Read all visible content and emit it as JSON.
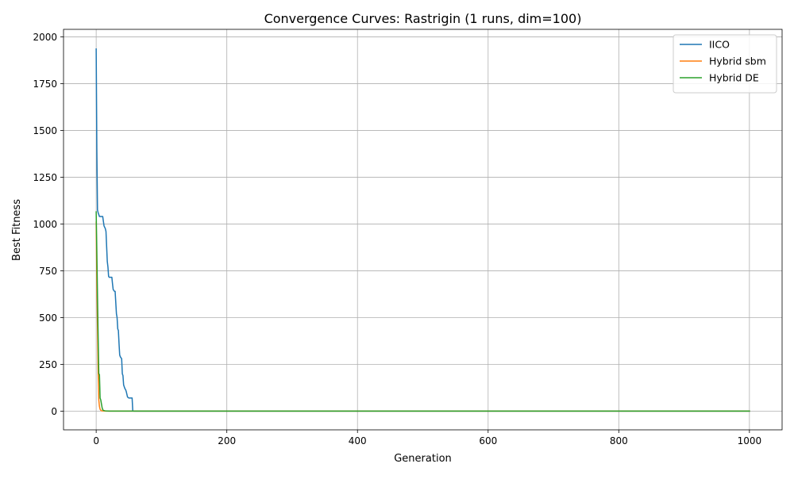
{
  "chart_data": {
    "type": "line",
    "title": "Convergence Curves: Rastrigin (1 runs, dim=100)",
    "xlabel": "Generation",
    "ylabel": "Best Fitness",
    "xlim": [
      -50,
      1050
    ],
    "ylim": [
      -100,
      2040
    ],
    "xticks": [
      0,
      200,
      400,
      600,
      800,
      1000
    ],
    "yticks": [
      0,
      250,
      500,
      750,
      1000,
      1250,
      1500,
      1750,
      2000
    ],
    "grid": true,
    "legend_position": "top-right",
    "series": [
      {
        "name": "IICO",
        "color": "#1f77b4",
        "x": [
          0,
          1,
          2,
          3,
          5,
          10,
          12,
          14,
          15,
          17,
          18,
          19,
          20,
          24,
          25,
          26,
          28,
          29,
          30,
          31,
          32,
          33,
          34,
          35,
          36,
          37,
          38,
          39,
          40,
          41,
          42,
          43,
          44,
          45,
          46,
          48,
          50,
          51,
          52,
          55,
          56,
          57,
          58,
          60,
          100,
          200,
          400,
          600,
          800,
          1000
        ],
        "y": [
          1935,
          1400,
          1075,
          1060,
          1040,
          1040,
          990,
          975,
          960,
          800,
          770,
          720,
          715,
          715,
          680,
          650,
          640,
          640,
          580,
          520,
          500,
          440,
          430,
          360,
          300,
          290,
          285,
          280,
          200,
          190,
          140,
          130,
          120,
          115,
          105,
          75,
          70,
          70,
          70,
          70,
          2,
          1,
          0,
          0,
          0,
          0,
          0,
          0,
          0,
          0
        ]
      },
      {
        "name": "Hybrid sbm",
        "color": "#ff7f0e",
        "x": [
          0,
          1,
          2,
          3,
          4,
          5,
          6,
          7,
          8,
          10,
          15,
          20,
          100,
          200,
          400,
          600,
          800,
          1000
        ],
        "y": [
          1010,
          700,
          450,
          200,
          60,
          25,
          10,
          5,
          2,
          1,
          0,
          0,
          0,
          0,
          0,
          0,
          0,
          0
        ]
      },
      {
        "name": "Hybrid DE",
        "color": "#2ca02c",
        "x": [
          0,
          1,
          2,
          3,
          4,
          5,
          6,
          7,
          8,
          9,
          10,
          11,
          13,
          15,
          20,
          100,
          200,
          400,
          600,
          800,
          1000
        ],
        "y": [
          1065,
          850,
          620,
          400,
          200,
          195,
          70,
          60,
          40,
          20,
          8,
          4,
          2,
          1,
          0,
          0,
          0,
          0,
          0,
          0,
          0
        ]
      }
    ]
  }
}
